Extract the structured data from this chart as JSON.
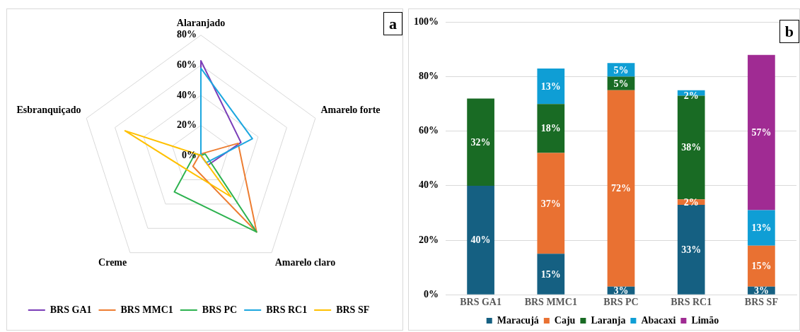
{
  "chart_data": [
    {
      "type": "radar",
      "categories": [
        "Alaranjado",
        "Amarelo forte",
        "Amarelo claro",
        "Creme",
        "Esbranquiçado"
      ],
      "series": [
        {
          "name": "BRS GA1",
          "color": "#7a3db8",
          "values": [
            63,
            28,
            8,
            0,
            0
          ]
        },
        {
          "name": "BRS MMC1",
          "color": "#ed7d31",
          "values": [
            1,
            26,
            63,
            9,
            1
          ]
        },
        {
          "name": "BRS PC",
          "color": "#2db24f",
          "values": [
            0,
            3,
            63,
            30,
            4
          ]
        },
        {
          "name": "BRS RC1",
          "color": "#1ca7df",
          "values": [
            58,
            36,
            6,
            0,
            0
          ]
        },
        {
          "name": "BRS SF",
          "color": "#ffc000",
          "values": [
            0,
            0,
            34,
            13,
            53
          ]
        }
      ],
      "ylim": [
        0,
        80
      ],
      "yticks": [
        {
          "value": 0,
          "label": "0%"
        },
        {
          "value": 20,
          "label": "20%"
        },
        {
          "value": 40,
          "label": "40%"
        },
        {
          "value": 60,
          "label": "60%"
        },
        {
          "value": 80,
          "label": "80%"
        }
      ],
      "grid": true,
      "legend": "bottom",
      "marker": "none",
      "annotations": [
        "a"
      ]
    },
    {
      "type": "bar",
      "stacked": true,
      "categories": [
        "BRS GA1",
        "BRS MMC1",
        "BRS PC",
        "BRS RC1",
        "BRS SF"
      ],
      "series": [
        {
          "name": "Maracujá",
          "color": "#156082",
          "values": [
            40,
            15,
            3,
            33,
            3
          ],
          "value_labels": [
            "40%",
            "15%",
            "3%",
            "33%",
            "3%"
          ]
        },
        {
          "name": "Caju",
          "color": "#e97132",
          "values": [
            null,
            37,
            72,
            2,
            15
          ],
          "value_labels": [
            null,
            "37%",
            "72%",
            "2%",
            "15%"
          ]
        },
        {
          "name": "Laranja",
          "color": "#196b24",
          "values": [
            32,
            18,
            5,
            38,
            null
          ],
          "value_labels": [
            "32%",
            "18%",
            "5%",
            "38%",
            null
          ]
        },
        {
          "name": "Abacaxi",
          "color": "#0f9ed5",
          "values": [
            null,
            13,
            5,
            2,
            13
          ],
          "value_labels": [
            null,
            "13%",
            "5%",
            "2%",
            "13%"
          ]
        },
        {
          "name": "Limão",
          "color": "#a02b93",
          "values": [
            null,
            null,
            null,
            null,
            57
          ],
          "value_labels": [
            null,
            null,
            null,
            null,
            "57%"
          ]
        }
      ],
      "ylim": [
        0,
        100
      ],
      "yticks": [
        {
          "value": 0,
          "label": "0%"
        },
        {
          "value": 20,
          "label": "20%"
        },
        {
          "value": 40,
          "label": "40%"
        },
        {
          "value": 60,
          "label": "60%"
        },
        {
          "value": 80,
          "label": "80%"
        },
        {
          "value": 100,
          "label": "100%"
        }
      ],
      "grid": "y",
      "legend": "bottom",
      "annotations": [
        "b"
      ]
    }
  ]
}
